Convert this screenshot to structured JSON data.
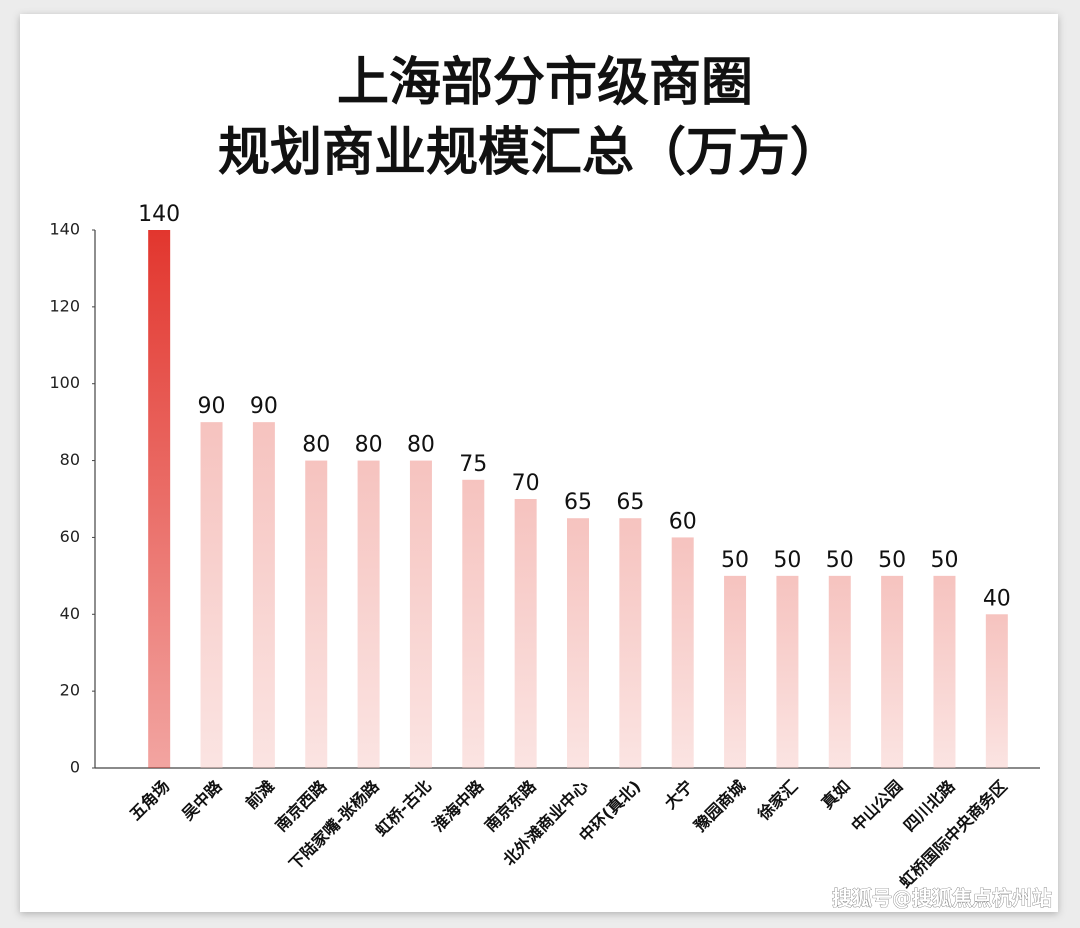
{
  "chart_data": {
    "type": "bar",
    "title": [
      "上海部分市级商圈",
      "规划商业规模汇总（万方）"
    ],
    "categories": [
      "五角场",
      "吴中路",
      "前滩",
      "南京西路",
      "下陆家嘴-张杨路",
      "虹桥-古北",
      "淮海中路",
      "南京东路",
      "北外滩商业中心",
      "中环(真北)",
      "大宁",
      "豫园商城",
      "徐家汇",
      "真如",
      "中山公园",
      "四川北路",
      "虹桥国际中央商务区"
    ],
    "values": [
      140,
      90,
      90,
      80,
      80,
      80,
      75,
      70,
      65,
      65,
      60,
      50,
      50,
      50,
      50,
      50,
      40
    ],
    "colors": [
      "#e2362e",
      "#f6c3bf",
      "#f6c3bf",
      "#f6c3bf",
      "#f6c3bf",
      "#f6c3bf",
      "#f6c3bf",
      "#f6c3bf",
      "#f6c3bf",
      "#f6c3bf",
      "#f6c3bf",
      "#f6c3bf",
      "#f6c3bf",
      "#f6c3bf",
      "#f6c3bf",
      "#f6c3bf",
      "#f6c3bf"
    ],
    "ylim": [
      0,
      140
    ],
    "yticks": [
      0,
      20,
      40,
      60,
      80,
      100,
      120,
      140
    ],
    "grid": false
  },
  "watermark": "搜狐号@搜狐焦点杭州站"
}
